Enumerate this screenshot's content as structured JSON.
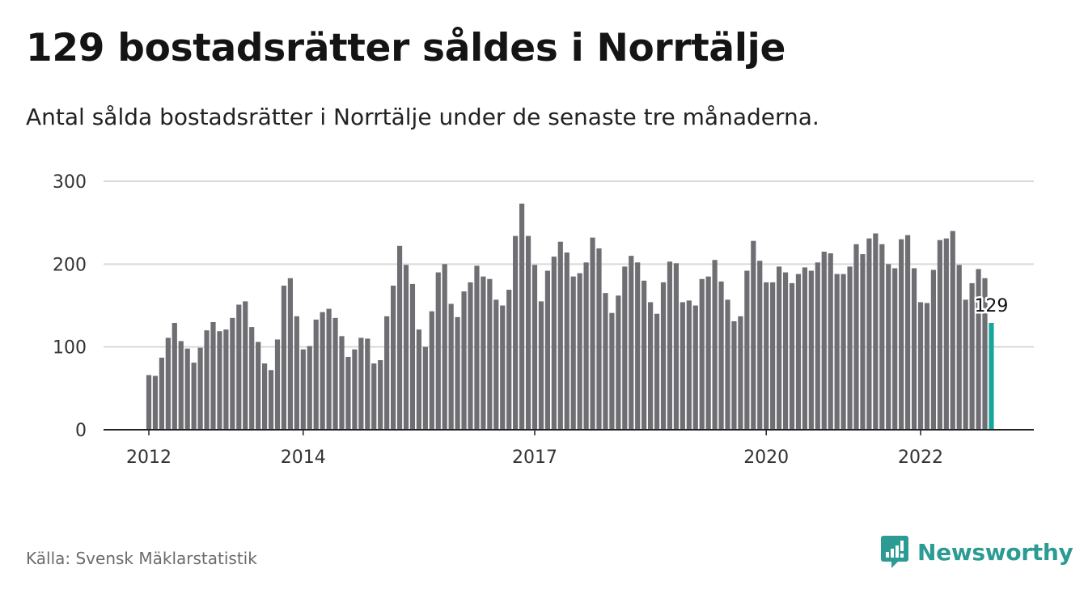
{
  "title": "129 bostadsrätter såldes i Norrtälje",
  "subtitle": "Antal sålda bostadsrätter i Norrtälje under de senaste tre månaderna.",
  "source": "Källa: Svensk Mäklarstatistik",
  "brand": {
    "name": "Newsworthy",
    "icon": "newsworthy-logo-icon"
  },
  "colors": {
    "bar": "#6f6e73",
    "highlight": "#18a59a",
    "grid": "#d9d9d9",
    "axis": "#222222",
    "brand": "#2b9b93"
  },
  "chart_data": {
    "type": "bar",
    "title": "",
    "xlabel": "",
    "ylabel": "",
    "ylim": [
      0,
      300
    ],
    "yticks": [
      0,
      100,
      200,
      300
    ],
    "xticks": [
      "2012",
      "2014",
      "2017",
      "2020",
      "2022"
    ],
    "grid": true,
    "highlight_last": true,
    "last_label": "129",
    "series": [
      {
        "values": [
          66,
          65,
          87,
          111,
          129,
          107,
          98,
          81,
          99,
          120,
          130,
          119,
          121,
          135,
          151,
          155,
          124,
          106,
          80,
          72,
          109,
          174,
          183,
          137,
          97,
          101,
          133,
          142,
          146,
          135,
          113,
          88,
          97,
          111,
          110,
          80,
          84,
          137,
          174,
          222,
          199,
          176,
          121,
          100,
          143,
          190,
          200,
          152,
          136,
          167,
          178,
          198,
          185,
          182,
          157,
          150,
          169,
          234,
          273,
          234,
          199,
          155,
          192,
          209,
          227,
          214,
          185,
          189,
          202,
          232,
          219,
          165,
          141,
          162,
          197,
          210,
          202,
          180,
          154,
          140,
          178,
          203,
          201,
          154,
          156,
          150,
          182,
          185,
          205,
          179,
          157,
          131,
          137,
          192,
          228,
          204,
          178,
          178,
          197,
          190,
          177,
          188,
          196,
          192,
          202,
          215,
          213,
          188,
          188,
          197,
          224,
          212,
          231,
          237,
          224,
          200,
          195,
          230,
          235,
          195,
          154,
          153,
          193,
          229,
          231,
          240,
          199,
          157,
          177,
          194,
          183,
          129
        ]
      }
    ]
  }
}
